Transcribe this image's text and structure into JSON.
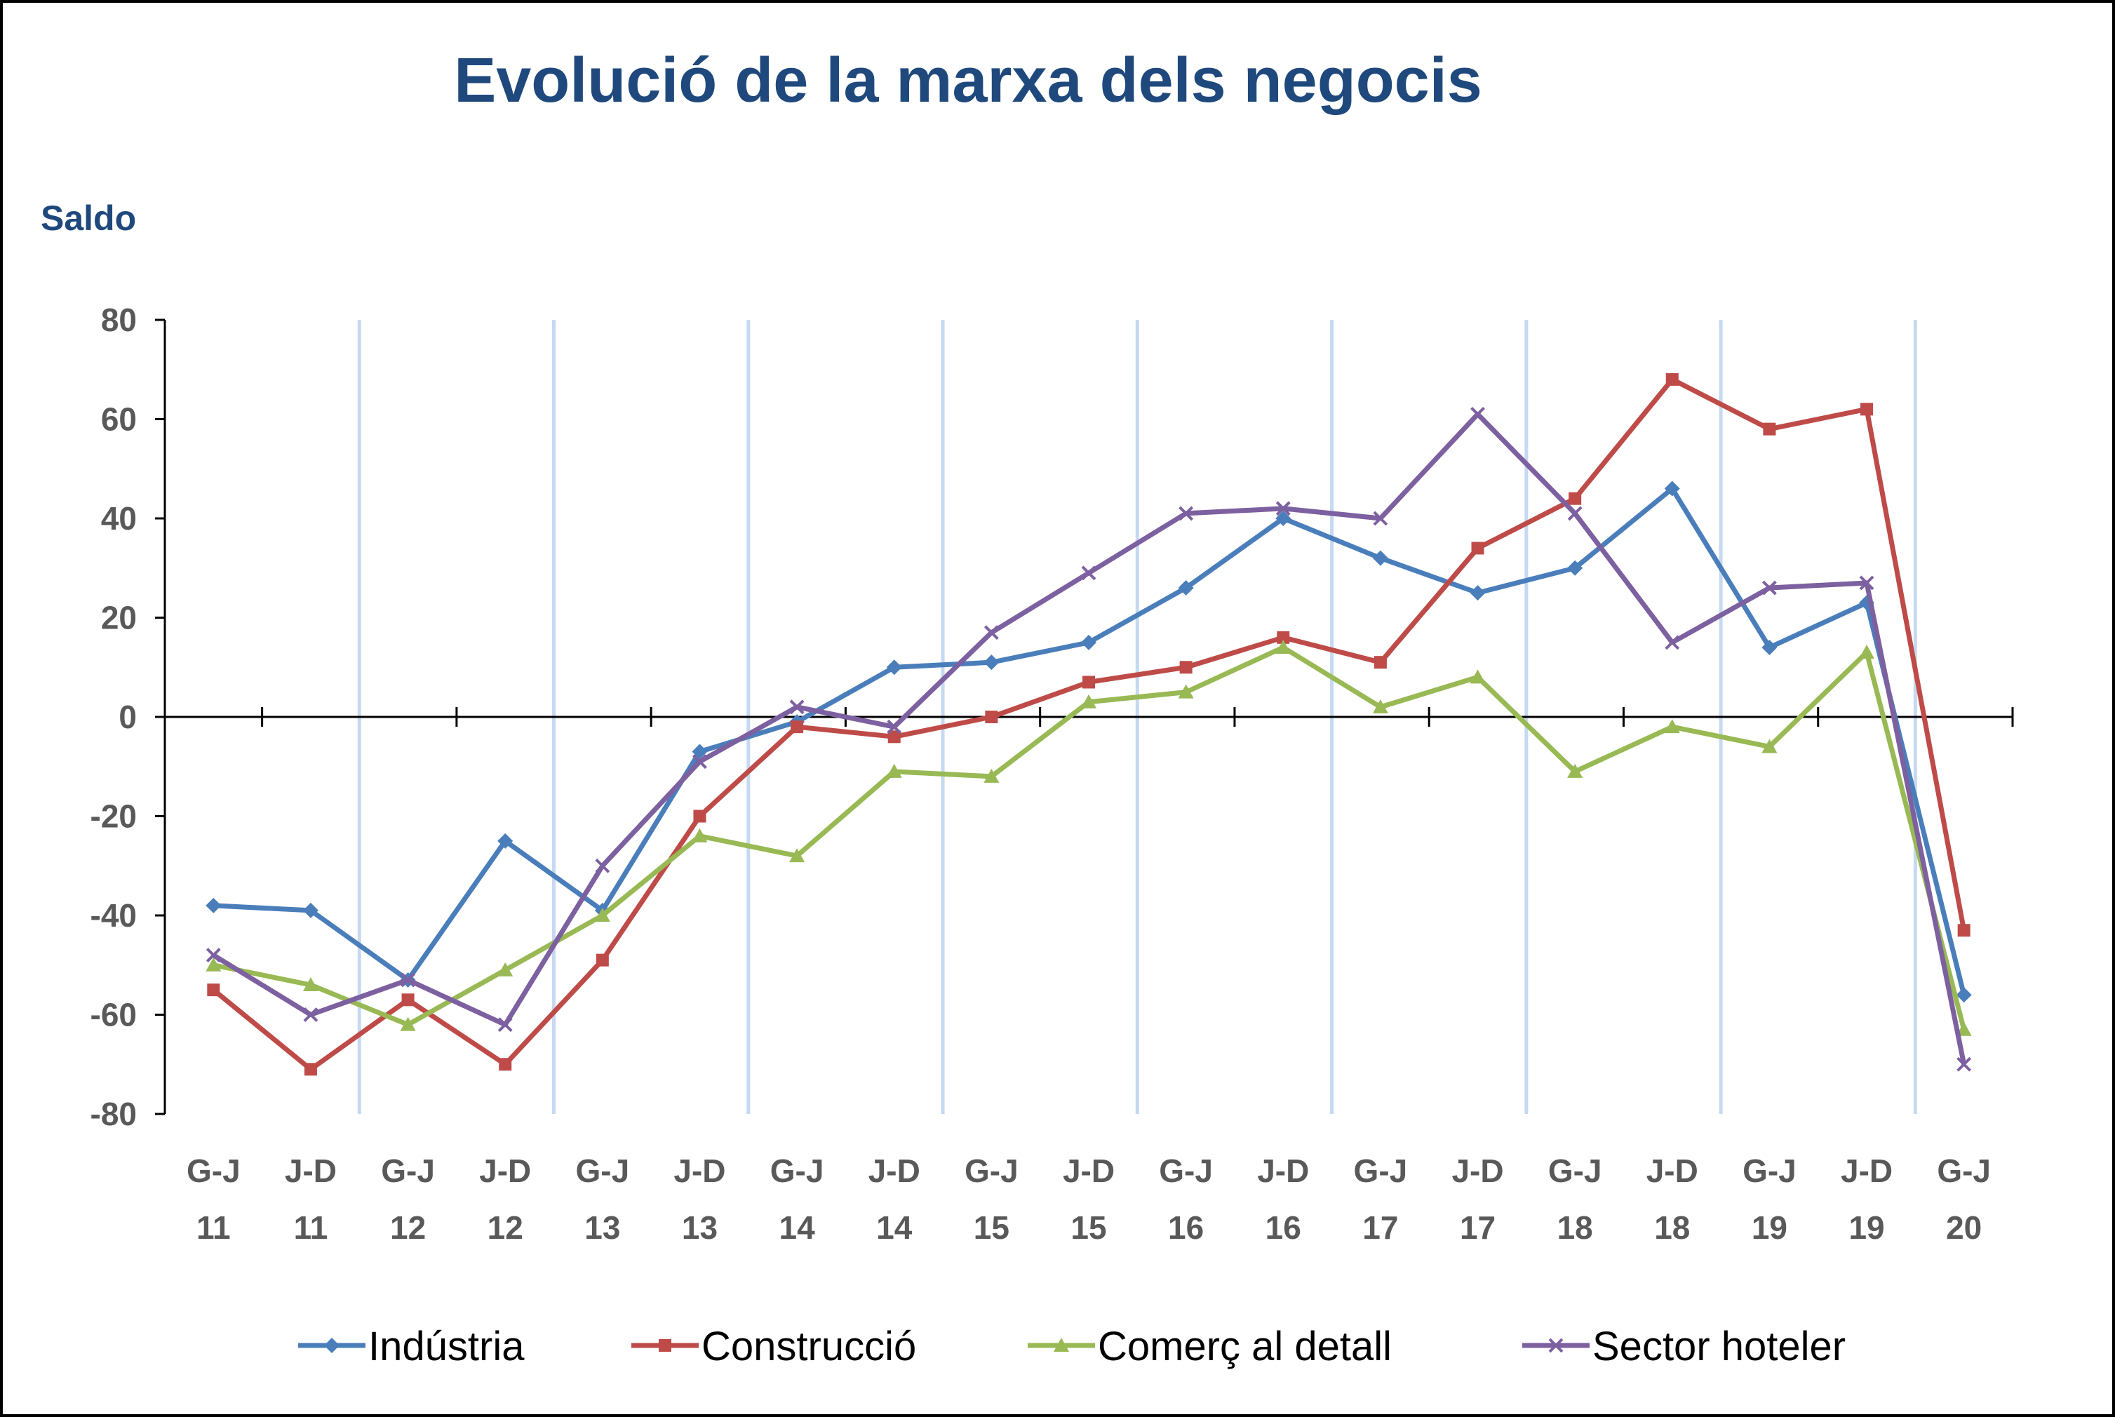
{
  "chart_data": {
    "type": "line",
    "title": "Evolució de la marxa dels negocis",
    "ylabel": "Saldo",
    "xlabel": "",
    "ylim": [
      -80,
      80
    ],
    "yticks": [
      80,
      60,
      40,
      20,
      0,
      -20,
      -40,
      -60,
      -80
    ],
    "categories": [
      [
        "G-J",
        "11"
      ],
      [
        "J-D",
        "11"
      ],
      [
        "G-J",
        "12"
      ],
      [
        "J-D",
        "12"
      ],
      [
        "G-J",
        "13"
      ],
      [
        "J-D",
        "13"
      ],
      [
        "G-J",
        "14"
      ],
      [
        "J-D",
        "14"
      ],
      [
        "G-J",
        "15"
      ],
      [
        "J-D",
        "15"
      ],
      [
        "G-J",
        "16"
      ],
      [
        "J-D",
        "16"
      ],
      [
        "G-J",
        "17"
      ],
      [
        "J-D",
        "17"
      ],
      [
        "G-J",
        "18"
      ],
      [
        "J-D",
        "18"
      ],
      [
        "G-J",
        "19"
      ],
      [
        "J-D",
        "19"
      ],
      [
        "G-J",
        "20"
      ]
    ],
    "grid": "vertical light-blue bands every two periods",
    "legend_placement": "bottom",
    "series": [
      {
        "name": "Indústria",
        "color": "#4A7EBB",
        "marker": "diamond",
        "values": [
          -38,
          -39,
          -53,
          -25,
          -39,
          -7,
          -1,
          10,
          11,
          15,
          26,
          40,
          32,
          25,
          30,
          46,
          14,
          23,
          -56
        ]
      },
      {
        "name": "Construcció",
        "color": "#BE4B48",
        "marker": "square",
        "values": [
          -55,
          -71,
          -57,
          -70,
          -49,
          -20,
          -2,
          -4,
          0,
          7,
          10,
          16,
          11,
          34,
          44,
          68,
          58,
          62,
          -43
        ]
      },
      {
        "name": "Comerç al detall",
        "color": "#98B954",
        "marker": "triangle",
        "values": [
          -50,
          -54,
          -62,
          -51,
          -40,
          -24,
          -28,
          -11,
          -12,
          3,
          5,
          14,
          2,
          8,
          -11,
          -2,
          -6,
          13,
          -63
        ]
      },
      {
        "name": "Sector hoteler",
        "color": "#7D60A0",
        "marker": "x",
        "values": [
          -48,
          -60,
          -53,
          -62,
          -30,
          -9,
          2,
          -2,
          17,
          29,
          41,
          42,
          40,
          61,
          41,
          15,
          26,
          27,
          -70
        ]
      }
    ]
  }
}
